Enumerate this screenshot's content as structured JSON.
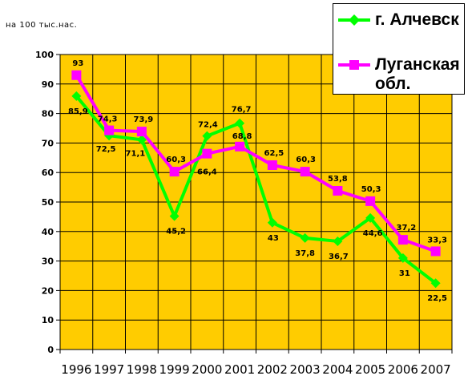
{
  "unit_label": "на 100 тыс.нас.",
  "colors": {
    "plot_bg": "#FFCC00",
    "grid": "#000000",
    "alchevsk": "#00FF00",
    "lugansk": "#FF00FF"
  },
  "chart_data": {
    "type": "line",
    "x": [
      "1996",
      "1997",
      "1998",
      "1999",
      "2000",
      "2001",
      "2002",
      "2003",
      "2004",
      "2005",
      "2006",
      "2007"
    ],
    "ylim": [
      0,
      100
    ],
    "ytick_step": 10,
    "grid": true,
    "legend_position": "top-right",
    "series": [
      {
        "name": "г. Алчевск",
        "marker": "diamond",
        "values": [
          85.9,
          72.5,
          71.1,
          45.2,
          72.4,
          76.7,
          43,
          37.8,
          36.7,
          44.6,
          31,
          22.5
        ],
        "labels": [
          "85,9",
          "72,5",
          "71,1",
          "45,2",
          "72,4",
          "76,7",
          "43",
          "37,8",
          "36,7",
          "44,6",
          "31",
          "22,5"
        ]
      },
      {
        "name": "Луганская\nобл.",
        "marker": "square",
        "values": [
          93,
          74.3,
          73.9,
          60.3,
          66.4,
          68.8,
          62.5,
          60.3,
          53.8,
          50.3,
          37.2,
          33.3
        ],
        "labels": [
          "93",
          "74,3",
          "73,9",
          "60,3",
          "66,4",
          "68,8",
          "62,5",
          "60,3",
          "53,8",
          "50,3",
          "37,2",
          "33,3"
        ]
      }
    ]
  }
}
